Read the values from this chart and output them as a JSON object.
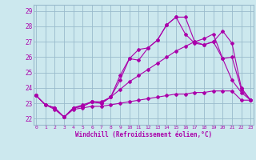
{
  "xlabel": "Windchill (Refroidissement éolien,°C)",
  "bg_color": "#cce8ee",
  "line_color": "#aa00aa",
  "grid_color": "#99bbcc",
  "x_ticks": [
    0,
    1,
    2,
    3,
    4,
    5,
    6,
    7,
    8,
    9,
    10,
    11,
    12,
    13,
    14,
    15,
    16,
    17,
    18,
    19,
    20,
    21,
    22,
    23
  ],
  "y_ticks": [
    22,
    23,
    24,
    25,
    26,
    27,
    28,
    29
  ],
  "xlim": [
    -0.3,
    23.3
  ],
  "ylim": [
    21.6,
    29.4
  ],
  "series": [
    [
      23.5,
      22.9,
      22.7,
      22.1,
      22.7,
      22.8,
      23.1,
      23.1,
      23.4,
      23.9,
      24.4,
      24.8,
      25.2,
      25.6,
      26.0,
      26.4,
      26.7,
      27.0,
      27.2,
      27.5,
      25.9,
      26.0,
      23.9,
      23.2
    ],
    [
      23.5,
      22.9,
      22.7,
      22.1,
      22.7,
      22.8,
      23.1,
      23.0,
      23.4,
      24.5,
      25.9,
      25.8,
      26.6,
      27.1,
      28.1,
      28.6,
      27.5,
      26.9,
      26.8,
      27.0,
      27.7,
      26.9,
      24.0,
      23.2
    ],
    [
      23.5,
      22.9,
      22.7,
      22.1,
      22.7,
      22.9,
      23.1,
      23.0,
      23.4,
      24.8,
      25.9,
      26.5,
      26.6,
      27.1,
      28.1,
      28.6,
      28.6,
      27.0,
      26.8,
      27.0,
      25.9,
      24.5,
      23.7,
      23.2
    ]
  ],
  "bottom_series": [
    23.5,
    22.9,
    22.6,
    22.1,
    22.6,
    22.7,
    22.8,
    22.8,
    22.9,
    23.0,
    23.1,
    23.2,
    23.3,
    23.4,
    23.5,
    23.6,
    23.6,
    23.7,
    23.7,
    23.8,
    23.8,
    23.8,
    23.2,
    23.2
  ]
}
